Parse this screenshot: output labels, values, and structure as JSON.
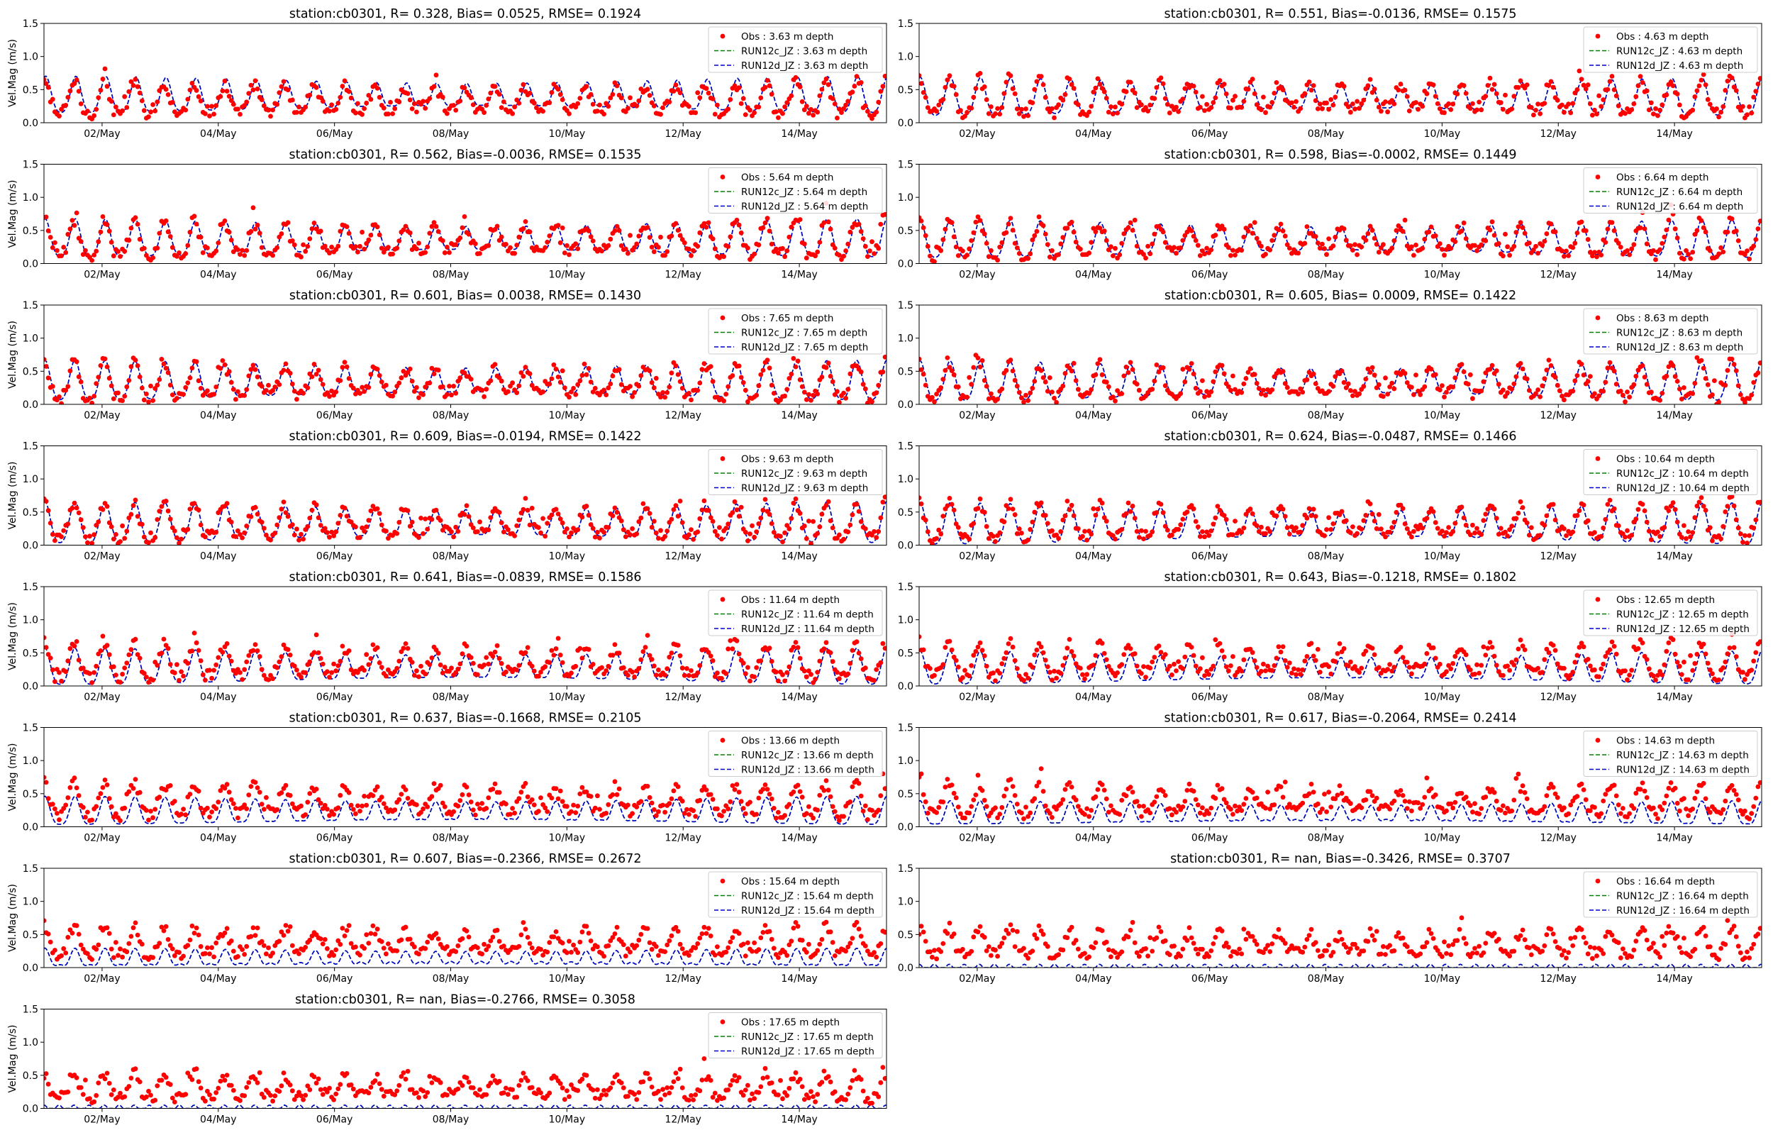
{
  "figure": {
    "ylabel": "Vel.Mag (m/s)"
  },
  "chart_data": [
    {
      "type": "line",
      "title": "station:cb0301, R= 0.328, Bias= 0.0525, RMSE= 0.1924",
      "xlabel": "",
      "ylabel": "Vel.Mag (m/s)",
      "ylim": [
        0,
        1.5
      ],
      "xlim": [
        "2019-05-01 00:00",
        "2019-05-15 12:00"
      ],
      "x_ticks": [
        "02/May",
        "04/May",
        "06/May",
        "08/May",
        "10/May",
        "12/May",
        "14/May"
      ],
      "y_ticks": [
        "0.0",
        "0.5",
        "1.0",
        "1.5"
      ],
      "legend_position": "upper right",
      "series": [
        {
          "name": "Obs : 3.63 m depth",
          "style": "dots",
          "color": "#ff0000",
          "mean": 0.33,
          "amp": 0.2,
          "lag": 0.0
        },
        {
          "name": "RUN12c_JZ : 3.63 m depth",
          "style": "dashed",
          "color": "#008000",
          "mean": 0.38,
          "amp": 0.22,
          "lag": 0.06
        },
        {
          "name": "RUN12d_JZ : 3.63 m depth",
          "style": "dashed",
          "color": "#0000cc",
          "mean": 0.38,
          "amp": 0.22,
          "lag": 0.06
        }
      ]
    },
    {
      "type": "line",
      "title": "station:cb0301, R= 0.551, Bias=-0.0136, RMSE= 0.1575",
      "xlabel": "",
      "ylabel": "",
      "ylim": [
        0,
        1.5
      ],
      "xlim": [
        "2019-05-01 00:00",
        "2019-05-15 12:00"
      ],
      "x_ticks": [
        "02/May",
        "04/May",
        "06/May",
        "08/May",
        "10/May",
        "12/May",
        "14/May"
      ],
      "y_ticks": [
        "0.0",
        "0.5",
        "1.0",
        "1.5"
      ],
      "legend_position": "upper right",
      "series": [
        {
          "name": "Obs : 4.63 m depth",
          "style": "dots",
          "color": "#ff0000",
          "mean": 0.36,
          "amp": 0.22,
          "lag": 0.0
        },
        {
          "name": "RUN12c_JZ : 4.63 m depth",
          "style": "dashed",
          "color": "#008000",
          "mean": 0.35,
          "amp": 0.23,
          "lag": 0.04
        },
        {
          "name": "RUN12d_JZ : 4.63 m depth",
          "style": "dashed",
          "color": "#0000cc",
          "mean": 0.35,
          "amp": 0.23,
          "lag": 0.04
        }
      ]
    },
    {
      "type": "line",
      "title": "station:cb0301, R= 0.562, Bias=-0.0036, RMSE= 0.1535",
      "xlabel": "",
      "ylabel": "Vel.Mag (m/s)",
      "ylim": [
        0,
        1.5
      ],
      "xlim": [
        "2019-05-01 00:00",
        "2019-05-15 12:00"
      ],
      "x_ticks": [
        "02/May",
        "04/May",
        "06/May",
        "08/May",
        "10/May",
        "12/May",
        "14/May"
      ],
      "y_ticks": [
        "0.0",
        "0.5",
        "1.0",
        "1.5"
      ],
      "legend_position": "upper right",
      "series": [
        {
          "name": "Obs : 5.64 m depth",
          "style": "dots",
          "color": "#ff0000",
          "mean": 0.34,
          "amp": 0.22,
          "lag": 0.0
        },
        {
          "name": "RUN12c_JZ : 5.64 m depth",
          "style": "dashed",
          "color": "#008000",
          "mean": 0.34,
          "amp": 0.23,
          "lag": 0.04
        },
        {
          "name": "RUN12d_JZ : 5.64 m depth",
          "style": "dashed",
          "color": "#0000cc",
          "mean": 0.34,
          "amp": 0.23,
          "lag": 0.04
        }
      ]
    },
    {
      "type": "line",
      "title": "station:cb0301, R= 0.598, Bias=-0.0002, RMSE= 0.1449",
      "xlabel": "",
      "ylabel": "",
      "ylim": [
        0,
        1.5
      ],
      "xlim": [
        "2019-05-01 00:00",
        "2019-05-15 12:00"
      ],
      "x_ticks": [
        "02/May",
        "04/May",
        "06/May",
        "08/May",
        "10/May",
        "12/May",
        "14/May"
      ],
      "y_ticks": [
        "0.0",
        "0.5",
        "1.0",
        "1.5"
      ],
      "legend_position": "upper right",
      "series": [
        {
          "name": "Obs : 6.64 m depth",
          "style": "dots",
          "color": "#ff0000",
          "mean": 0.33,
          "amp": 0.22,
          "lag": 0.0
        },
        {
          "name": "RUN12c_JZ : 6.64 m depth",
          "style": "dashed",
          "color": "#008000",
          "mean": 0.33,
          "amp": 0.23,
          "lag": 0.03
        },
        {
          "name": "RUN12d_JZ : 6.64 m depth",
          "style": "dashed",
          "color": "#0000cc",
          "mean": 0.33,
          "amp": 0.23,
          "lag": 0.03
        }
      ]
    },
    {
      "type": "line",
      "title": "station:cb0301, R= 0.601, Bias= 0.0038, RMSE= 0.1430",
      "xlabel": "",
      "ylabel": "Vel.Mag (m/s)",
      "ylim": [
        0,
        1.5
      ],
      "xlim": [
        "2019-05-01 00:00",
        "2019-05-15 12:00"
      ],
      "x_ticks": [
        "02/May",
        "04/May",
        "06/May",
        "08/May",
        "10/May",
        "12/May",
        "14/May"
      ],
      "y_ticks": [
        "0.0",
        "0.5",
        "1.0",
        "1.5"
      ],
      "legend_position": "upper right",
      "series": [
        {
          "name": "Obs : 7.65 m depth",
          "style": "dots",
          "color": "#ff0000",
          "mean": 0.31,
          "amp": 0.22,
          "lag": 0.0
        },
        {
          "name": "RUN12c_JZ : 7.65 m depth",
          "style": "dashed",
          "color": "#008000",
          "mean": 0.32,
          "amp": 0.24,
          "lag": 0.03
        },
        {
          "name": "RUN12d_JZ : 7.65 m depth",
          "style": "dashed",
          "color": "#0000cc",
          "mean": 0.32,
          "amp": 0.24,
          "lag": 0.03
        }
      ]
    },
    {
      "type": "line",
      "title": "station:cb0301, R= 0.605, Bias= 0.0009, RMSE= 0.1422",
      "xlabel": "",
      "ylabel": "",
      "ylim": [
        0,
        1.5
      ],
      "xlim": [
        "2019-05-01 00:00",
        "2019-05-15 12:00"
      ],
      "x_ticks": [
        "02/May",
        "04/May",
        "06/May",
        "08/May",
        "10/May",
        "12/May",
        "14/May"
      ],
      "y_ticks": [
        "0.0",
        "0.5",
        "1.0",
        "1.5"
      ],
      "legend_position": "upper right",
      "series": [
        {
          "name": "Obs : 8.63 m depth",
          "style": "dots",
          "color": "#ff0000",
          "mean": 0.31,
          "amp": 0.22,
          "lag": 0.0
        },
        {
          "name": "RUN12c_JZ : 8.63 m depth",
          "style": "dashed",
          "color": "#008000",
          "mean": 0.31,
          "amp": 0.24,
          "lag": 0.03
        },
        {
          "name": "RUN12d_JZ : 8.63 m depth",
          "style": "dashed",
          "color": "#0000cc",
          "mean": 0.31,
          "amp": 0.24,
          "lag": 0.03
        }
      ]
    },
    {
      "type": "line",
      "title": "station:cb0301, R= 0.609, Bias=-0.0194, RMSE= 0.1422",
      "xlabel": "",
      "ylabel": "Vel.Mag (m/s)",
      "ylim": [
        0,
        1.5
      ],
      "xlim": [
        "2019-05-01 00:00",
        "2019-05-15 12:00"
      ],
      "x_ticks": [
        "02/May",
        "04/May",
        "06/May",
        "08/May",
        "10/May",
        "12/May",
        "14/May"
      ],
      "y_ticks": [
        "0.0",
        "0.5",
        "1.0",
        "1.5"
      ],
      "legend_position": "upper right",
      "series": [
        {
          "name": "Obs : 9.63 m depth",
          "style": "dots",
          "color": "#ff0000",
          "mean": 0.32,
          "amp": 0.22,
          "lag": 0.0
        },
        {
          "name": "RUN12c_JZ : 9.63 m depth",
          "style": "dashed",
          "color": "#008000",
          "mean": 0.3,
          "amp": 0.25,
          "lag": 0.03
        },
        {
          "name": "RUN12d_JZ : 9.63 m depth",
          "style": "dashed",
          "color": "#0000cc",
          "mean": 0.3,
          "amp": 0.25,
          "lag": 0.03
        }
      ]
    },
    {
      "type": "line",
      "title": "station:cb0301, R= 0.624, Bias=-0.0487, RMSE= 0.1466",
      "xlabel": "",
      "ylabel": "",
      "ylim": [
        0,
        1.5
      ],
      "xlim": [
        "2019-05-01 00:00",
        "2019-05-15 12:00"
      ],
      "x_ticks": [
        "02/May",
        "04/May",
        "06/May",
        "08/May",
        "10/May",
        "12/May",
        "14/May"
      ],
      "y_ticks": [
        "0.0",
        "0.5",
        "1.0",
        "1.5"
      ],
      "legend_position": "upper right",
      "series": [
        {
          "name": "Obs : 10.64 m depth",
          "style": "dots",
          "color": "#ff0000",
          "mean": 0.33,
          "amp": 0.22,
          "lag": 0.0
        },
        {
          "name": "RUN12c_JZ : 10.64 m depth",
          "style": "dashed",
          "color": "#008000",
          "mean": 0.28,
          "amp": 0.25,
          "lag": 0.03
        },
        {
          "name": "RUN12d_JZ : 10.64 m depth",
          "style": "dashed",
          "color": "#0000cc",
          "mean": 0.28,
          "amp": 0.25,
          "lag": 0.03
        }
      ]
    },
    {
      "type": "line",
      "title": "station:cb0301, R= 0.641, Bias=-0.0839, RMSE= 0.1586",
      "xlabel": "",
      "ylabel": "Vel.Mag (m/s)",
      "ylim": [
        0,
        1.5
      ],
      "xlim": [
        "2019-05-01 00:00",
        "2019-05-15 12:00"
      ],
      "x_ticks": [
        "02/May",
        "04/May",
        "06/May",
        "08/May",
        "10/May",
        "12/May",
        "14/May"
      ],
      "y_ticks": [
        "0.0",
        "0.5",
        "1.0",
        "1.5"
      ],
      "legend_position": "upper right",
      "series": [
        {
          "name": "Obs : 11.64 m depth",
          "style": "dots",
          "color": "#ff0000",
          "mean": 0.34,
          "amp": 0.22,
          "lag": 0.0
        },
        {
          "name": "RUN12c_JZ : 11.64 m depth",
          "style": "dashed",
          "color": "#008000",
          "mean": 0.25,
          "amp": 0.22,
          "lag": 0.03
        },
        {
          "name": "RUN12d_JZ : 11.64 m depth",
          "style": "dashed",
          "color": "#0000cc",
          "mean": 0.25,
          "amp": 0.22,
          "lag": 0.03
        }
      ]
    },
    {
      "type": "line",
      "title": "station:cb0301, R= 0.643, Bias=-0.1218, RMSE= 0.1802",
      "xlabel": "",
      "ylabel": "",
      "ylim": [
        0,
        1.5
      ],
      "xlim": [
        "2019-05-01 00:00",
        "2019-05-15 12:00"
      ],
      "x_ticks": [
        "02/May",
        "04/May",
        "06/May",
        "08/May",
        "10/May",
        "12/May",
        "14/May"
      ],
      "y_ticks": [
        "0.0",
        "0.5",
        "1.0",
        "1.5"
      ],
      "legend_position": "upper right",
      "series": [
        {
          "name": "Obs : 12.65 m depth",
          "style": "dots",
          "color": "#ff0000",
          "mean": 0.36,
          "amp": 0.21,
          "lag": 0.0
        },
        {
          "name": "RUN12c_JZ : 12.65 m depth",
          "style": "dashed",
          "color": "#008000",
          "mean": 0.23,
          "amp": 0.2,
          "lag": 0.03
        },
        {
          "name": "RUN12d_JZ : 12.65 m depth",
          "style": "dashed",
          "color": "#0000cc",
          "mean": 0.23,
          "amp": 0.2,
          "lag": 0.03
        }
      ]
    },
    {
      "type": "line",
      "title": "station:cb0301, R= 0.637, Bias=-0.1668, RMSE= 0.2105",
      "xlabel": "",
      "ylabel": "Vel.Mag (m/s)",
      "ylim": [
        0,
        1.5
      ],
      "xlim": [
        "2019-05-01 00:00",
        "2019-05-15 12:00"
      ],
      "x_ticks": [
        "02/May",
        "04/May",
        "06/May",
        "08/May",
        "10/May",
        "12/May",
        "14/May"
      ],
      "y_ticks": [
        "0.0",
        "0.5",
        "1.0",
        "1.5"
      ],
      "legend_position": "upper right",
      "series": [
        {
          "name": "Obs : 13.66 m depth",
          "style": "dots",
          "color": "#ff0000",
          "mean": 0.37,
          "amp": 0.2,
          "lag": 0.0
        },
        {
          "name": "RUN12c_JZ : 13.66 m depth",
          "style": "dashed",
          "color": "#008000",
          "mean": 0.2,
          "amp": 0.17,
          "lag": 0.03
        },
        {
          "name": "RUN12d_JZ : 13.66 m depth",
          "style": "dashed",
          "color": "#0000cc",
          "mean": 0.2,
          "amp": 0.17,
          "lag": 0.03
        }
      ]
    },
    {
      "type": "line",
      "title": "station:cb0301, R= 0.617, Bias=-0.2064, RMSE= 0.2414",
      "xlabel": "",
      "ylabel": "",
      "ylim": [
        0,
        1.5
      ],
      "xlim": [
        "2019-05-01 00:00",
        "2019-05-15 12:00"
      ],
      "x_ticks": [
        "02/May",
        "04/May",
        "06/May",
        "08/May",
        "10/May",
        "12/May",
        "14/May"
      ],
      "y_ticks": [
        "0.0",
        "0.5",
        "1.0",
        "1.5"
      ],
      "legend_position": "upper right",
      "series": [
        {
          "name": "Obs : 14.63 m depth",
          "style": "dots",
          "color": "#ff0000",
          "mean": 0.38,
          "amp": 0.19,
          "lag": 0.0
        },
        {
          "name": "RUN12c_JZ : 14.63 m depth",
          "style": "dashed",
          "color": "#008000",
          "mean": 0.17,
          "amp": 0.14,
          "lag": 0.03
        },
        {
          "name": "RUN12d_JZ : 14.63 m depth",
          "style": "dashed",
          "color": "#0000cc",
          "mean": 0.17,
          "amp": 0.14,
          "lag": 0.03
        }
      ]
    },
    {
      "type": "line",
      "title": "station:cb0301, R= 0.607, Bias=-0.2366, RMSE= 0.2672",
      "xlabel": "",
      "ylabel": "Vel.Mag (m/s)",
      "ylim": [
        0,
        1.5
      ],
      "xlim": [
        "2019-05-01 00:00",
        "2019-05-15 12:00"
      ],
      "x_ticks": [
        "02/May",
        "04/May",
        "06/May",
        "08/May",
        "10/May",
        "12/May",
        "14/May"
      ],
      "y_ticks": [
        "0.0",
        "0.5",
        "1.0",
        "1.5"
      ],
      "legend_position": "upper right",
      "series": [
        {
          "name": "Obs : 15.64 m depth",
          "style": "dots",
          "color": "#ff0000",
          "mean": 0.36,
          "amp": 0.17,
          "lag": 0.0
        },
        {
          "name": "RUN12c_JZ : 15.64 m depth",
          "style": "dashed",
          "color": "#008000",
          "mean": 0.12,
          "amp": 0.1,
          "lag": 0.03
        },
        {
          "name": "RUN12d_JZ : 15.64 m depth",
          "style": "dashed",
          "color": "#0000cc",
          "mean": 0.12,
          "amp": 0.1,
          "lag": 0.03
        }
      ]
    },
    {
      "type": "line",
      "title": "station:cb0301, R=   nan, Bias=-0.3426, RMSE= 0.3707",
      "xlabel": "",
      "ylabel": "",
      "ylim": [
        0,
        1.5
      ],
      "xlim": [
        "2019-05-01 00:00",
        "2019-05-15 12:00"
      ],
      "x_ticks": [
        "02/May",
        "04/May",
        "06/May",
        "08/May",
        "10/May",
        "12/May",
        "14/May"
      ],
      "y_ticks": [
        "0.0",
        "0.5",
        "1.0",
        "1.5"
      ],
      "legend_position": "upper right",
      "series": [
        {
          "name": "Obs : 16.64 m depth",
          "style": "dots",
          "color": "#ff0000",
          "mean": 0.34,
          "amp": 0.16,
          "lag": 0.0
        },
        {
          "name": "RUN12c_JZ : 16.64 m depth",
          "style": "dashed",
          "color": "#008000",
          "mean": 0.0,
          "amp": 0.0,
          "lag": 0.0
        },
        {
          "name": "RUN12d_JZ : 16.64 m depth",
          "style": "dashed",
          "color": "#0000cc",
          "mean": 0.0,
          "amp": 0.0,
          "lag": 0.0
        }
      ]
    },
    {
      "type": "line",
      "title": "station:cb0301, R=   nan, Bias=-0.2766, RMSE= 0.3058",
      "xlabel": "",
      "ylabel": "Vel.Mag (m/s)",
      "ylim": [
        0,
        1.5
      ],
      "xlim": [
        "2019-05-01 00:00",
        "2019-05-15 12:00"
      ],
      "x_ticks": [
        "02/May",
        "04/May",
        "06/May",
        "08/May",
        "10/May",
        "12/May",
        "14/May"
      ],
      "y_ticks": [
        "0.0",
        "0.5",
        "1.0",
        "1.5"
      ],
      "legend_position": "upper right",
      "series": [
        {
          "name": "Obs : 17.65 m depth",
          "style": "dots",
          "color": "#ff0000",
          "mean": 0.3,
          "amp": 0.15,
          "lag": 0.0
        },
        {
          "name": "RUN12c_JZ : 17.65 m depth",
          "style": "dashed",
          "color": "#008000",
          "mean": 0.0,
          "amp": 0.0,
          "lag": 0.0
        },
        {
          "name": "RUN12d_JZ : 17.65 m depth",
          "style": "dashed",
          "color": "#0000cc",
          "mean": 0.0,
          "amp": 0.0,
          "lag": 0.0
        }
      ]
    }
  ]
}
